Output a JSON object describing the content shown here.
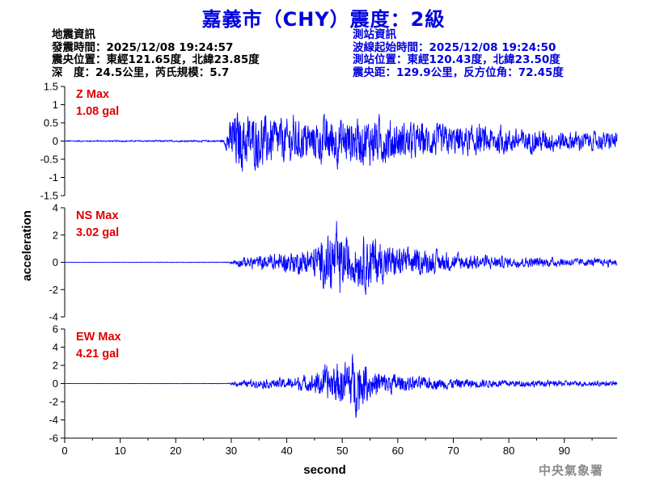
{
  "title": "嘉義市（CHY）震度：2級",
  "earthquake_info": {
    "heading": "地震資訊",
    "origin_time": "發震時間：2025/12/08 19:24:57",
    "epicenter": "震央位置：東經121.65度，北緯23.85度",
    "depth_magnitude": "深　度：24.5公里，芮氏規模：5.7"
  },
  "station_info": {
    "heading": "測站資訊",
    "wave_start": "波線起始時間：2025/12/08 19:24:50",
    "station_location": "測站位置：東經120.43度，北緯23.50度",
    "distance_azimuth": "震央距：129.9公里，反方位角：72.45度"
  },
  "footer": "中央氣象署",
  "chart_data": {
    "type": "line",
    "xlabel": "second",
    "ylabel": "acceleration",
    "xlim": [
      0,
      99.5
    ],
    "xticks": [
      "0",
      "10",
      "20",
      "30",
      "40",
      "50",
      "60",
      "70",
      "80",
      "90"
    ],
    "line_color": "#0000ff",
    "grid": false,
    "panels": [
      {
        "component": "Z",
        "label": "Z Max",
        "max_text": "1.08 gal",
        "max": 1.08,
        "ylim": [
          -1.5,
          1.5
        ],
        "yticks": [
          "1.5",
          "1",
          "0.5",
          "0",
          "-0.5",
          "-1",
          "-1.5"
        ],
        "envelope": [
          [
            0,
            0.02
          ],
          [
            28.5,
            0.03
          ],
          [
            29.5,
            0.5
          ],
          [
            30.5,
            1.08
          ],
          [
            33,
            0.95
          ],
          [
            40,
            0.75
          ],
          [
            45,
            0.7
          ],
          [
            48,
            0.9
          ],
          [
            52,
            0.8
          ],
          [
            57,
            0.85
          ],
          [
            62,
            0.6
          ],
          [
            70,
            0.55
          ],
          [
            80,
            0.45
          ],
          [
            90,
            0.35
          ],
          [
            99.5,
            0.3
          ]
        ]
      },
      {
        "component": "NS",
        "label": "NS Max",
        "max_text": "3.02 gal",
        "max": 3.02,
        "ylim": [
          -4,
          4
        ],
        "yticks": [
          "4",
          "2",
          "0",
          "-2",
          "-4"
        ],
        "envelope": [
          [
            0,
            0.01
          ],
          [
            29.5,
            0.03
          ],
          [
            31,
            0.4
          ],
          [
            38,
            0.8
          ],
          [
            44,
            1.2
          ],
          [
            47,
            2.3
          ],
          [
            48,
            3.02
          ],
          [
            52,
            2.0
          ],
          [
            55,
            2.8
          ],
          [
            58,
            1.6
          ],
          [
            62,
            1.3
          ],
          [
            70,
            0.8
          ],
          [
            80,
            0.5
          ],
          [
            90,
            0.4
          ],
          [
            99.5,
            0.3
          ]
        ]
      },
      {
        "component": "EW",
        "label": "EW Max",
        "max_text": "4.21 gal",
        "max": 4.21,
        "ylim": [
          -6,
          6
        ],
        "yticks": [
          "6",
          "4",
          "2",
          "0",
          "-2",
          "-4",
          "-6"
        ],
        "envelope": [
          [
            0,
            0.01
          ],
          [
            29.5,
            0.03
          ],
          [
            31,
            0.4
          ],
          [
            38,
            0.7
          ],
          [
            44,
            1.1
          ],
          [
            47,
            2.2
          ],
          [
            49,
            2.8
          ],
          [
            52.5,
            4.21
          ],
          [
            54,
            2.5
          ],
          [
            57,
            1.8
          ],
          [
            62,
            1.0
          ],
          [
            70,
            0.7
          ],
          [
            80,
            0.5
          ],
          [
            90,
            0.4
          ],
          [
            99.5,
            0.3
          ]
        ]
      }
    ]
  }
}
